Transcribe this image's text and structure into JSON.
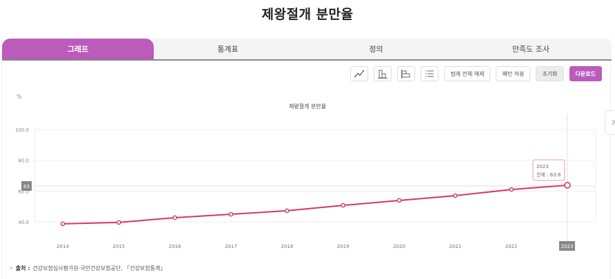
{
  "page": {
    "title": "제왕절개 분만율"
  },
  "tabs": [
    {
      "label": "그래프",
      "active": true
    },
    {
      "label": "통계표",
      "active": false
    },
    {
      "label": "정의",
      "active": false
    },
    {
      "label": "만족도 조사",
      "active": false
    }
  ],
  "toolbar": {
    "icons": [
      "line-chart-icon",
      "bar-chart-icon",
      "horizontal-bar-chart-icon",
      "list-icon"
    ],
    "legend_clear_label": "범례 전체 해제",
    "pattern_label": "패턴 적용",
    "reset_label": "초기화",
    "download_label": "다운로드"
  },
  "side_tab": {
    "label": "가"
  },
  "tooltip": {
    "year": "2023",
    "text": "전체 : 63.8"
  },
  "crosshair": {
    "y_label": "63",
    "x_label": "2023"
  },
  "source": {
    "label": "출처 :",
    "text": "건강보험심사평가원·국민건강보험공단, 「건강보험통계」"
  },
  "colors": {
    "accent": "#bb5bbb",
    "series": "#d6336c",
    "grid": "#eeeeee"
  },
  "chart_data": {
    "type": "line",
    "title": "제왕절개 분만율",
    "xlabel": "",
    "ylabel": "%",
    "categories": [
      "2014",
      "2015",
      "2016",
      "2017",
      "2018",
      "2019",
      "2020",
      "2021",
      "2022",
      "2023"
    ],
    "series": [
      {
        "name": "전체",
        "values": [
          38.7,
          39.6,
          42.7,
          44.9,
          47.2,
          50.7,
          53.9,
          57.0,
          61.0,
          63.8
        ]
      }
    ],
    "yticks": [
      "40.0",
      "60.0",
      "80.0",
      "100.0"
    ],
    "ylim": [
      40,
      100
    ],
    "grid": true,
    "legend": "none"
  }
}
